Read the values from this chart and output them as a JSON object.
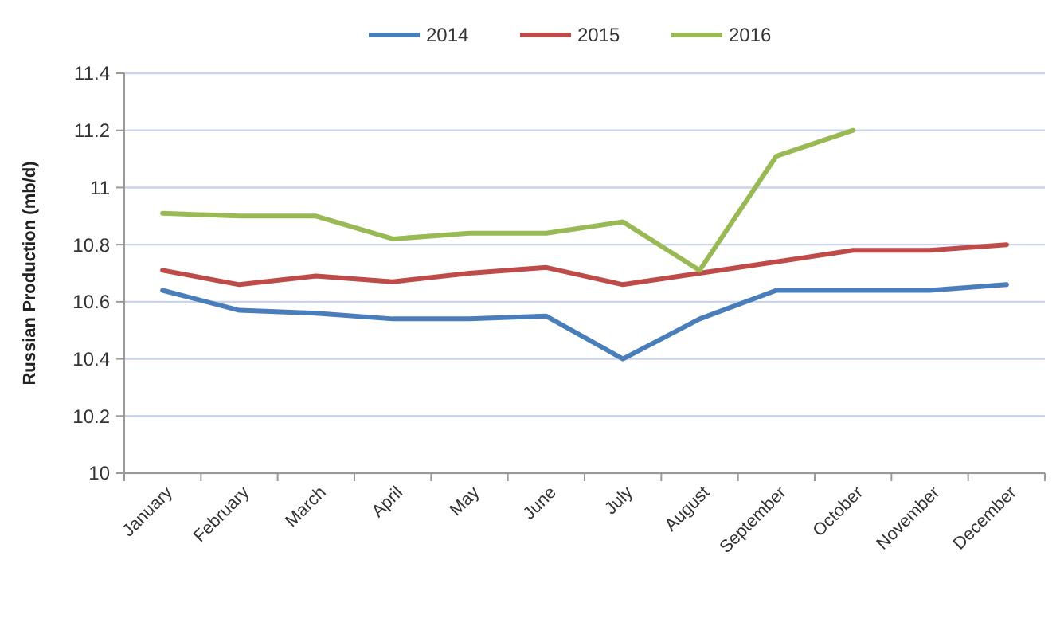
{
  "chart_data": {
    "type": "line",
    "ylabel": "Russian Production (mb/d)",
    "categories": [
      "January",
      "February",
      "March",
      "April",
      "May",
      "June",
      "July",
      "August",
      "September",
      "October",
      "November",
      "December"
    ],
    "series": [
      {
        "name": "2014",
        "color": "#4a7ebb",
        "values": [
          10.64,
          10.57,
          10.56,
          10.54,
          10.54,
          10.55,
          10.4,
          10.54,
          10.64,
          10.64,
          10.64,
          10.66
        ]
      },
      {
        "name": "2015",
        "color": "#be4b48",
        "values": [
          10.71,
          10.66,
          10.69,
          10.67,
          10.7,
          10.72,
          10.66,
          10.7,
          10.74,
          10.78,
          10.78,
          10.8
        ]
      },
      {
        "name": "2016",
        "color": "#98b954",
        "values": [
          10.91,
          10.9,
          10.9,
          10.82,
          10.84,
          10.84,
          10.88,
          10.71,
          11.11,
          11.2,
          null,
          null
        ]
      }
    ],
    "ylim": [
      10,
      11.4
    ],
    "yticks": [
      10,
      10.2,
      10.4,
      10.6,
      10.8,
      11,
      11.2,
      11.4
    ],
    "grid": "y",
    "legend": "top",
    "line_style": "solid",
    "marker": "none"
  }
}
